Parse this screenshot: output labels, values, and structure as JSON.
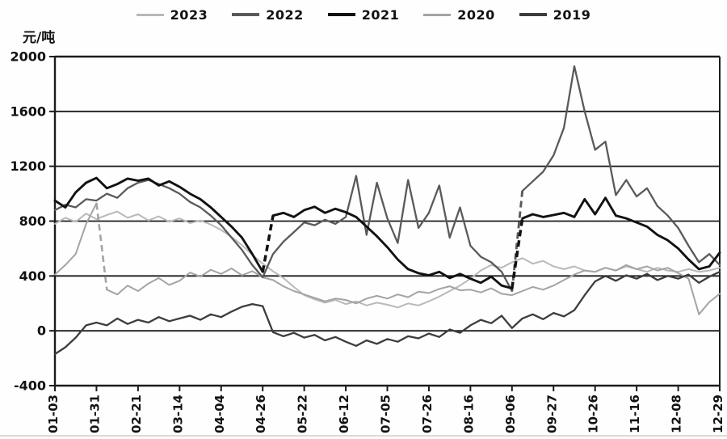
{
  "unit_label": "元/吨",
  "legend": {
    "items": [
      {
        "label": "2023",
        "color": "#b9b9b9"
      },
      {
        "label": "2022",
        "color": "#5a5a5a"
      },
      {
        "label": "2021",
        "color": "#121212"
      },
      {
        "label": "2020",
        "color": "#a4a4a4"
      },
      {
        "label": "2019",
        "color": "#3d3d3d"
      }
    ]
  },
  "chart_data": {
    "type": "line",
    "title": "",
    "ylabel": "元/吨",
    "xlabel": "",
    "ylim": [
      -400,
      2000
    ],
    "y_ticks": [
      2000,
      1600,
      1200,
      800,
      400,
      0,
      -400
    ],
    "grid": "horizontal",
    "legend_position": "top-center",
    "x_tick_labels": [
      "01-03",
      "01-31",
      "02-21",
      "03-14",
      "04-04",
      "04-26",
      "05-22",
      "06-12",
      "07-05",
      "07-26",
      "08-16",
      "09-06",
      "09-27",
      "10-26",
      "11-16",
      "12-08",
      "12-29"
    ],
    "x_tick_sample_step": 4,
    "draw_order": [
      "2023",
      "2020",
      "2019",
      "2022",
      "2021"
    ],
    "series": [
      {
        "name": "2023",
        "color": "#b9b9b9",
        "stroke_width": 2,
        "dash_gap_segments": [],
        "values": [
          780,
          825,
          795,
          855,
          815,
          845,
          870,
          825,
          850,
          805,
          835,
          795,
          820,
          785,
          805,
          775,
          735,
          685,
          625,
          555,
          490,
          435,
          385,
          320,
          260,
          230,
          205,
          225,
          195,
          215,
          185,
          205,
          190,
          170,
          200,
          185,
          215,
          250,
          290,
          330,
          380,
          440,
          480,
          460,
          500,
          530,
          490,
          510,
          470,
          450,
          470,
          440,
          430,
          460,
          440,
          470,
          450,
          430,
          460,
          440,
          430,
          450,
          430,
          440,
          460
        ]
      },
      {
        "name": "2022",
        "color": "#5a5a5a",
        "stroke_width": 2.3,
        "dash_gap_segments": [
          [
            44,
            45
          ]
        ],
        "values": [
          880,
          920,
          900,
          960,
          950,
          1000,
          970,
          1040,
          1080,
          1100,
          1070,
          1040,
          1000,
          940,
          900,
          840,
          770,
          680,
          590,
          480,
          390,
          560,
          650,
          720,
          790,
          770,
          810,
          780,
          830,
          1130,
          700,
          1080,
          820,
          640,
          1100,
          750,
          860,
          1060,
          680,
          900,
          620,
          540,
          500,
          430,
          290,
          1020,
          1090,
          1160,
          1280,
          1480,
          1930,
          1600,
          1320,
          1380,
          990,
          1100,
          980,
          1040,
          910,
          840,
          750,
          620,
          500,
          560,
          480
        ]
      },
      {
        "name": "2021",
        "color": "#121212",
        "stroke_width": 2.9,
        "dash_gap_segments": [
          [
            20,
            21
          ],
          [
            44,
            45
          ]
        ],
        "values": [
          950,
          900,
          1010,
          1080,
          1115,
          1040,
          1070,
          1110,
          1095,
          1110,
          1060,
          1090,
          1050,
          1000,
          960,
          900,
          830,
          760,
          680,
          560,
          430,
          840,
          860,
          830,
          880,
          905,
          860,
          890,
          865,
          830,
          760,
          690,
          610,
          520,
          450,
          420,
          405,
          430,
          385,
          415,
          380,
          350,
          395,
          330,
          310,
          820,
          850,
          830,
          845,
          860,
          830,
          960,
          850,
          970,
          840,
          820,
          790,
          760,
          700,
          660,
          600,
          520,
          450,
          470,
          570
        ]
      },
      {
        "name": "2020",
        "color": "#a4a4a4",
        "stroke_width": 2,
        "dash_gap_segments": [
          [
            4,
            5
          ]
        ],
        "values": [
          410,
          480,
          560,
          780,
          930,
          300,
          265,
          330,
          290,
          345,
          385,
          335,
          365,
          425,
          395,
          445,
          415,
          455,
          405,
          435,
          390,
          370,
          325,
          290,
          265,
          240,
          215,
          235,
          225,
          200,
          235,
          255,
          235,
          265,
          245,
          285,
          275,
          305,
          325,
          295,
          300,
          280,
          310,
          270,
          260,
          290,
          320,
          300,
          330,
          370,
          410,
          440,
          430,
          460,
          440,
          480,
          450,
          470,
          440,
          460,
          420,
          380,
          120,
          210,
          270
        ]
      },
      {
        "name": "2019",
        "color": "#3d3d3d",
        "stroke_width": 2.3,
        "dash_gap_segments": [],
        "values": [
          -170,
          -120,
          -50,
          40,
          60,
          40,
          90,
          50,
          80,
          60,
          100,
          70,
          90,
          110,
          80,
          120,
          100,
          140,
          175,
          195,
          180,
          -10,
          -40,
          -15,
          -50,
          -30,
          -70,
          -45,
          -80,
          -110,
          -70,
          -95,
          -60,
          -80,
          -40,
          -55,
          -20,
          -45,
          10,
          -15,
          40,
          80,
          55,
          110,
          20,
          90,
          120,
          85,
          130,
          105,
          150,
          260,
          360,
          400,
          365,
          405,
          380,
          415,
          370,
          400,
          380,
          410,
          350,
          395,
          430
        ]
      }
    ]
  }
}
